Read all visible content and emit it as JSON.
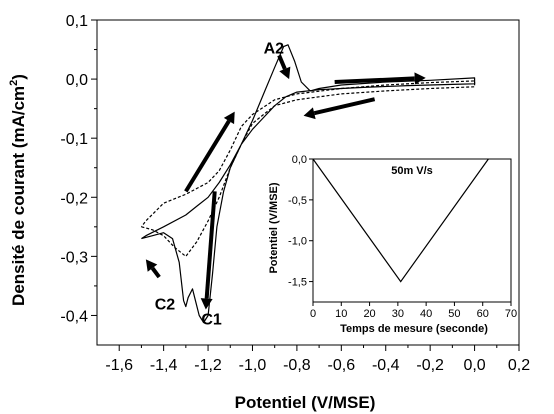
{
  "chart_data": {
    "type": "line",
    "xlabel": "Potentiel (V/MSE)",
    "ylabel_main": "Densité de courant (mA/cm",
    "ylabel_sup": "2",
    "ylabel_end": ")",
    "xlim": [
      -1.7,
      0.2
    ],
    "ylim": [
      -0.45,
      0.1
    ],
    "xticks": [
      {
        "v": -1.6,
        "label": "-1,6"
      },
      {
        "v": -1.4,
        "label": "-1,4"
      },
      {
        "v": -1.2,
        "label": "-1,2"
      },
      {
        "v": -1.0,
        "label": "-1,0"
      },
      {
        "v": -0.8,
        "label": "-0,8"
      },
      {
        "v": -0.6,
        "label": "-0,6"
      },
      {
        "v": -0.4,
        "label": "-0,4"
      },
      {
        "v": -0.2,
        "label": "-0,2"
      },
      {
        "v": 0.0,
        "label": "0,0"
      },
      {
        "v": 0.2,
        "label": "0,2"
      }
    ],
    "yticks": [
      {
        "v": 0.1,
        "label": "0,1"
      },
      {
        "v": 0.0,
        "label": "0,0"
      },
      {
        "v": -0.1,
        "label": "-0,1"
      },
      {
        "v": -0.2,
        "label": "-0,2"
      },
      {
        "v": -0.3,
        "label": "-0,3"
      },
      {
        "v": -0.4,
        "label": "-0,4"
      }
    ],
    "annotations": [
      {
        "text": "A2",
        "x": -0.95,
        "y": 0.043
      },
      {
        "text": "C2",
        "x": -1.44,
        "y": -0.39
      },
      {
        "text": "C1",
        "x": -1.23,
        "y": -0.415
      }
    ],
    "series": [
      {
        "style": "solid",
        "points": [
          [
            -1.5,
            -0.27
          ],
          [
            -1.45,
            -0.265
          ],
          [
            -1.4,
            -0.26
          ],
          [
            -1.36,
            -0.27
          ],
          [
            -1.33,
            -0.31
          ],
          [
            -1.31,
            -0.375
          ],
          [
            -1.3,
            -0.385
          ],
          [
            -1.29,
            -0.37
          ],
          [
            -1.27,
            -0.355
          ],
          [
            -1.26,
            -0.37
          ],
          [
            -1.24,
            -0.4
          ],
          [
            -1.22,
            -0.412
          ],
          [
            -1.2,
            -0.4
          ],
          [
            -1.18,
            -0.33
          ],
          [
            -1.16,
            -0.25
          ],
          [
            -1.13,
            -0.19
          ],
          [
            -1.1,
            -0.15
          ],
          [
            -1.05,
            -0.11
          ],
          [
            -1.0,
            -0.085
          ],
          [
            -0.95,
            -0.065
          ],
          [
            -0.9,
            -0.045
          ],
          [
            -0.85,
            -0.03
          ],
          [
            -0.8,
            -0.022
          ],
          [
            -0.7,
            -0.018
          ],
          [
            -0.6,
            -0.016
          ],
          [
            -0.5,
            -0.014
          ],
          [
            -0.3,
            -0.011
          ],
          [
            -0.1,
            -0.009
          ],
          [
            0.0,
            -0.008
          ],
          [
            0.0,
            0.002
          ],
          [
            -0.2,
            -0.002
          ],
          [
            -0.4,
            -0.005
          ],
          [
            -0.6,
            -0.01
          ],
          [
            -0.7,
            -0.016
          ],
          [
            -0.74,
            -0.02
          ],
          [
            -0.78,
            -0.005
          ],
          [
            -0.81,
            0.03
          ],
          [
            -0.84,
            0.058
          ],
          [
            -0.86,
            0.055
          ],
          [
            -0.9,
            0.02
          ],
          [
            -0.95,
            -0.025
          ],
          [
            -1.0,
            -0.07
          ],
          [
            -1.05,
            -0.11
          ],
          [
            -1.1,
            -0.145
          ],
          [
            -1.15,
            -0.175
          ],
          [
            -1.2,
            -0.2
          ],
          [
            -1.25,
            -0.215
          ],
          [
            -1.3,
            -0.23
          ],
          [
            -1.4,
            -0.25
          ],
          [
            -1.48,
            -0.265
          ],
          [
            -1.5,
            -0.27
          ]
        ]
      },
      {
        "style": "dashed",
        "points": [
          [
            -1.5,
            -0.25
          ],
          [
            -1.45,
            -0.255
          ],
          [
            -1.4,
            -0.265
          ],
          [
            -1.35,
            -0.285
          ],
          [
            -1.3,
            -0.3
          ],
          [
            -1.25,
            -0.275
          ],
          [
            -1.2,
            -0.24
          ],
          [
            -1.15,
            -0.2
          ],
          [
            -1.1,
            -0.15
          ],
          [
            -1.05,
            -0.11
          ],
          [
            -1.0,
            -0.075
          ],
          [
            -0.95,
            -0.06
          ],
          [
            -0.9,
            -0.045
          ],
          [
            -0.85,
            -0.04
          ],
          [
            -0.8,
            -0.035
          ],
          [
            -0.7,
            -0.03
          ],
          [
            -0.6,
            -0.025
          ],
          [
            -0.4,
            -0.02
          ],
          [
            -0.2,
            -0.016
          ],
          [
            0.0,
            -0.013
          ],
          [
            0.0,
            -0.003
          ],
          [
            -0.2,
            -0.006
          ],
          [
            -0.4,
            -0.01
          ],
          [
            -0.6,
            -0.016
          ],
          [
            -0.8,
            -0.025
          ],
          [
            -0.9,
            -0.035
          ],
          [
            -1.0,
            -0.06
          ],
          [
            -1.05,
            -0.08
          ],
          [
            -1.1,
            -0.12
          ],
          [
            -1.15,
            -0.155
          ],
          [
            -1.2,
            -0.175
          ],
          [
            -1.25,
            -0.185
          ],
          [
            -1.3,
            -0.195
          ],
          [
            -1.4,
            -0.21
          ],
          [
            -1.48,
            -0.24
          ],
          [
            -1.5,
            -0.25
          ]
        ]
      }
    ],
    "arrows": [
      {
        "from": [
          -0.88,
          0.04
        ],
        "to": [
          -0.835,
          0.0
        ]
      },
      {
        "from": [
          -0.63,
          -0.005
        ],
        "to": [
          -0.22,
          0.002
        ]
      },
      {
        "from": [
          -0.45,
          -0.034
        ],
        "to": [
          -0.77,
          -0.062
        ]
      },
      {
        "from": [
          -1.3,
          -0.19
        ],
        "to": [
          -1.08,
          -0.055
        ]
      },
      {
        "from": [
          -1.17,
          -0.19
        ],
        "to": [
          -1.21,
          -0.39
        ]
      },
      {
        "from": [
          -1.42,
          -0.335
        ],
        "to": [
          -1.48,
          -0.305
        ]
      }
    ],
    "inset": {
      "title": "50m V/s",
      "xlabel": "Temps de mesure (seconde)",
      "ylabel": "Potentiel (V/MSE)",
      "xlim": [
        0,
        70
      ],
      "ylim": [
        -1.75,
        0.0
      ],
      "xticks": [
        {
          "v": 0,
          "label": "0"
        },
        {
          "v": 10,
          "label": "10"
        },
        {
          "v": 20,
          "label": "20"
        },
        {
          "v": 30,
          "label": "30"
        },
        {
          "v": 40,
          "label": "40"
        },
        {
          "v": 50,
          "label": "50"
        },
        {
          "v": 60,
          "label": "60"
        },
        {
          "v": 70,
          "label": "70"
        }
      ],
      "yticks": [
        {
          "v": 0.0,
          "label": "0,0"
        },
        {
          "v": -0.5,
          "label": "-0,5"
        },
        {
          "v": -1.0,
          "label": "-1,0"
        },
        {
          "v": -1.5,
          "label": "-1,5"
        }
      ],
      "points": [
        [
          0,
          0.0
        ],
        [
          31,
          -1.5
        ],
        [
          62,
          0.0
        ]
      ]
    }
  }
}
